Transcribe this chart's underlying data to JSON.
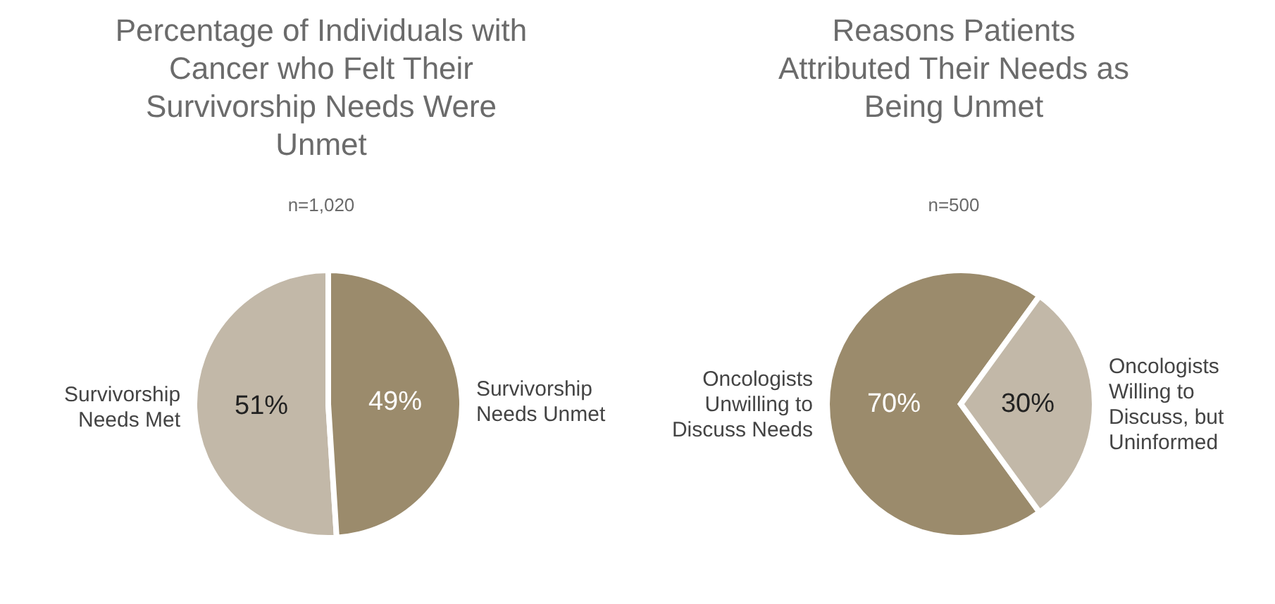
{
  "chart_data": [
    {
      "type": "pie",
      "title": "Percentage of Individuals with Cancer who Felt Their Survivorship Needs Were Unmet",
      "subtitle": "n=1,020",
      "categories": [
        "Survivorship Needs Met",
        "Survivorship Needs Unmet"
      ],
      "values": [
        51,
        49
      ],
      "colors": [
        "#c2b8a8",
        "#9b8b6c"
      ],
      "value_labels": [
        "51%",
        "49%"
      ]
    },
    {
      "type": "pie",
      "title": "Reasons Patients Attributed Their Needs as Being Unmet",
      "subtitle": "n=500",
      "categories": [
        "Oncologists Unwilling to Discuss Needs",
        "Oncologists Willing to Discuss, but Uninformed"
      ],
      "values": [
        70,
        30
      ],
      "colors": [
        "#9b8b6c",
        "#c2b8a8"
      ],
      "value_labels": [
        "70%",
        "30%"
      ]
    }
  ]
}
